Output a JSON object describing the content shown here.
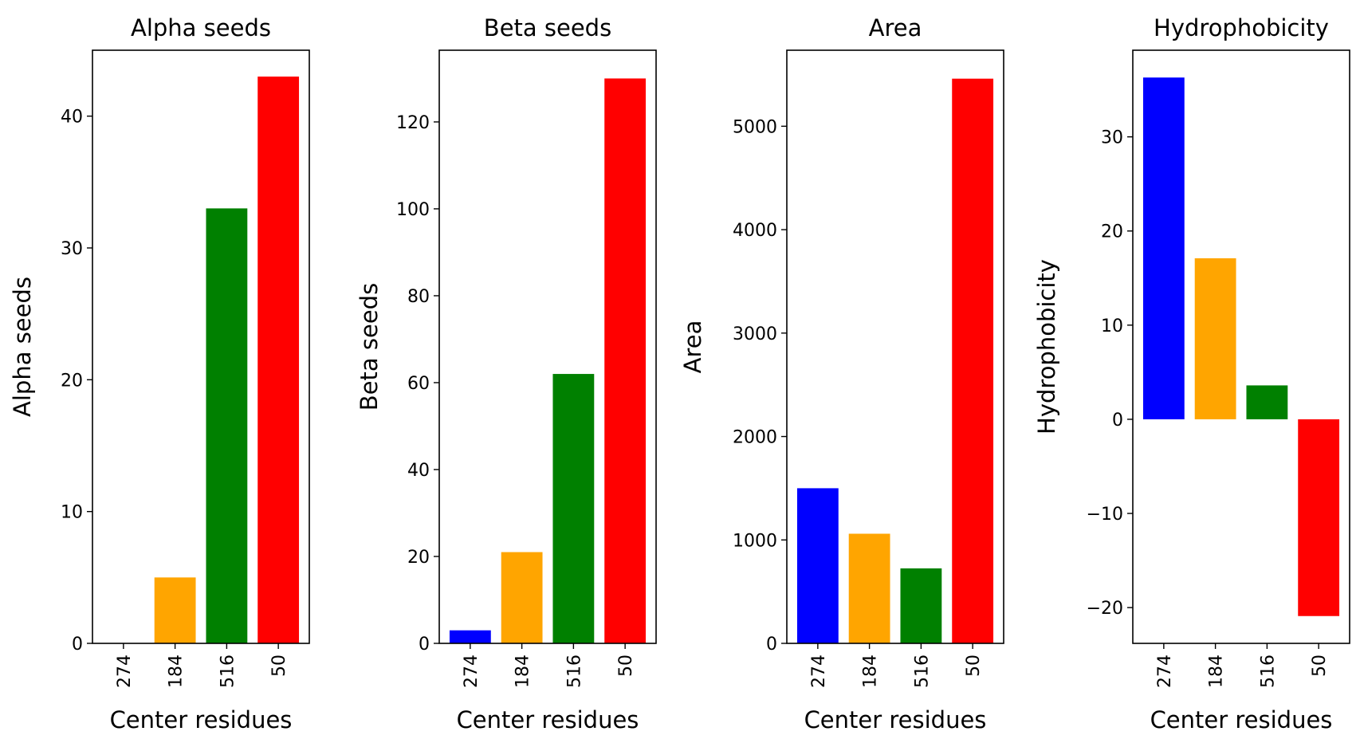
{
  "chart_data": [
    {
      "type": "bar",
      "title": "Alpha seeds",
      "xlabel": "Center residues",
      "ylabel": "Alpha seeds",
      "categories": [
        "274",
        "184",
        "516",
        "50"
      ],
      "values": [
        0,
        5,
        33,
        43
      ],
      "colors": [
        "#0000ff",
        "#ffa500",
        "#008000",
        "#ff0000"
      ],
      "ylim": [
        0,
        45
      ],
      "yticks": [
        0,
        10,
        20,
        30,
        40
      ],
      "ytick_labels": [
        "0",
        "10",
        "20",
        "30",
        "40"
      ],
      "grid": false
    },
    {
      "type": "bar",
      "title": "Beta seeds",
      "xlabel": "Center residues",
      "ylabel": "Beta seeds",
      "categories": [
        "274",
        "184",
        "516",
        "50"
      ],
      "values": [
        3,
        21,
        62,
        130
      ],
      "colors": [
        "#0000ff",
        "#ffa500",
        "#008000",
        "#ff0000"
      ],
      "ylim": [
        0,
        136.5
      ],
      "yticks": [
        0,
        20,
        40,
        60,
        80,
        100,
        120
      ],
      "ytick_labels": [
        "0",
        "20",
        "40",
        "60",
        "80",
        "100",
        "120"
      ],
      "grid": false
    },
    {
      "type": "bar",
      "title": "Area",
      "xlabel": "Center residues",
      "ylabel": "Area",
      "categories": [
        "274",
        "184",
        "516",
        "50"
      ],
      "values": [
        1500,
        1060,
        725,
        5460
      ],
      "colors": [
        "#0000ff",
        "#ffa500",
        "#008000",
        "#ff0000"
      ],
      "ylim": [
        0,
        5735
      ],
      "yticks": [
        0,
        1000,
        2000,
        3000,
        4000,
        5000
      ],
      "ytick_labels": [
        "0",
        "1000",
        "2000",
        "3000",
        "4000",
        "5000"
      ],
      "grid": false
    },
    {
      "type": "bar",
      "title": "Hydrophobicity",
      "xlabel": "Center residues",
      "ylabel": "Hydrophobicity",
      "categories": [
        "274",
        "184",
        "516",
        "50"
      ],
      "values": [
        36.3,
        17.1,
        3.6,
        -20.9
      ],
      "colors": [
        "#0000ff",
        "#ffa500",
        "#008000",
        "#ff0000"
      ],
      "ylim": [
        -23.8,
        39.2
      ],
      "yticks": [
        -20,
        -10,
        0,
        10,
        20,
        30
      ],
      "ytick_labels": [
        "−20",
        "−10",
        "0",
        "10",
        "20",
        "30"
      ],
      "grid": false
    }
  ]
}
